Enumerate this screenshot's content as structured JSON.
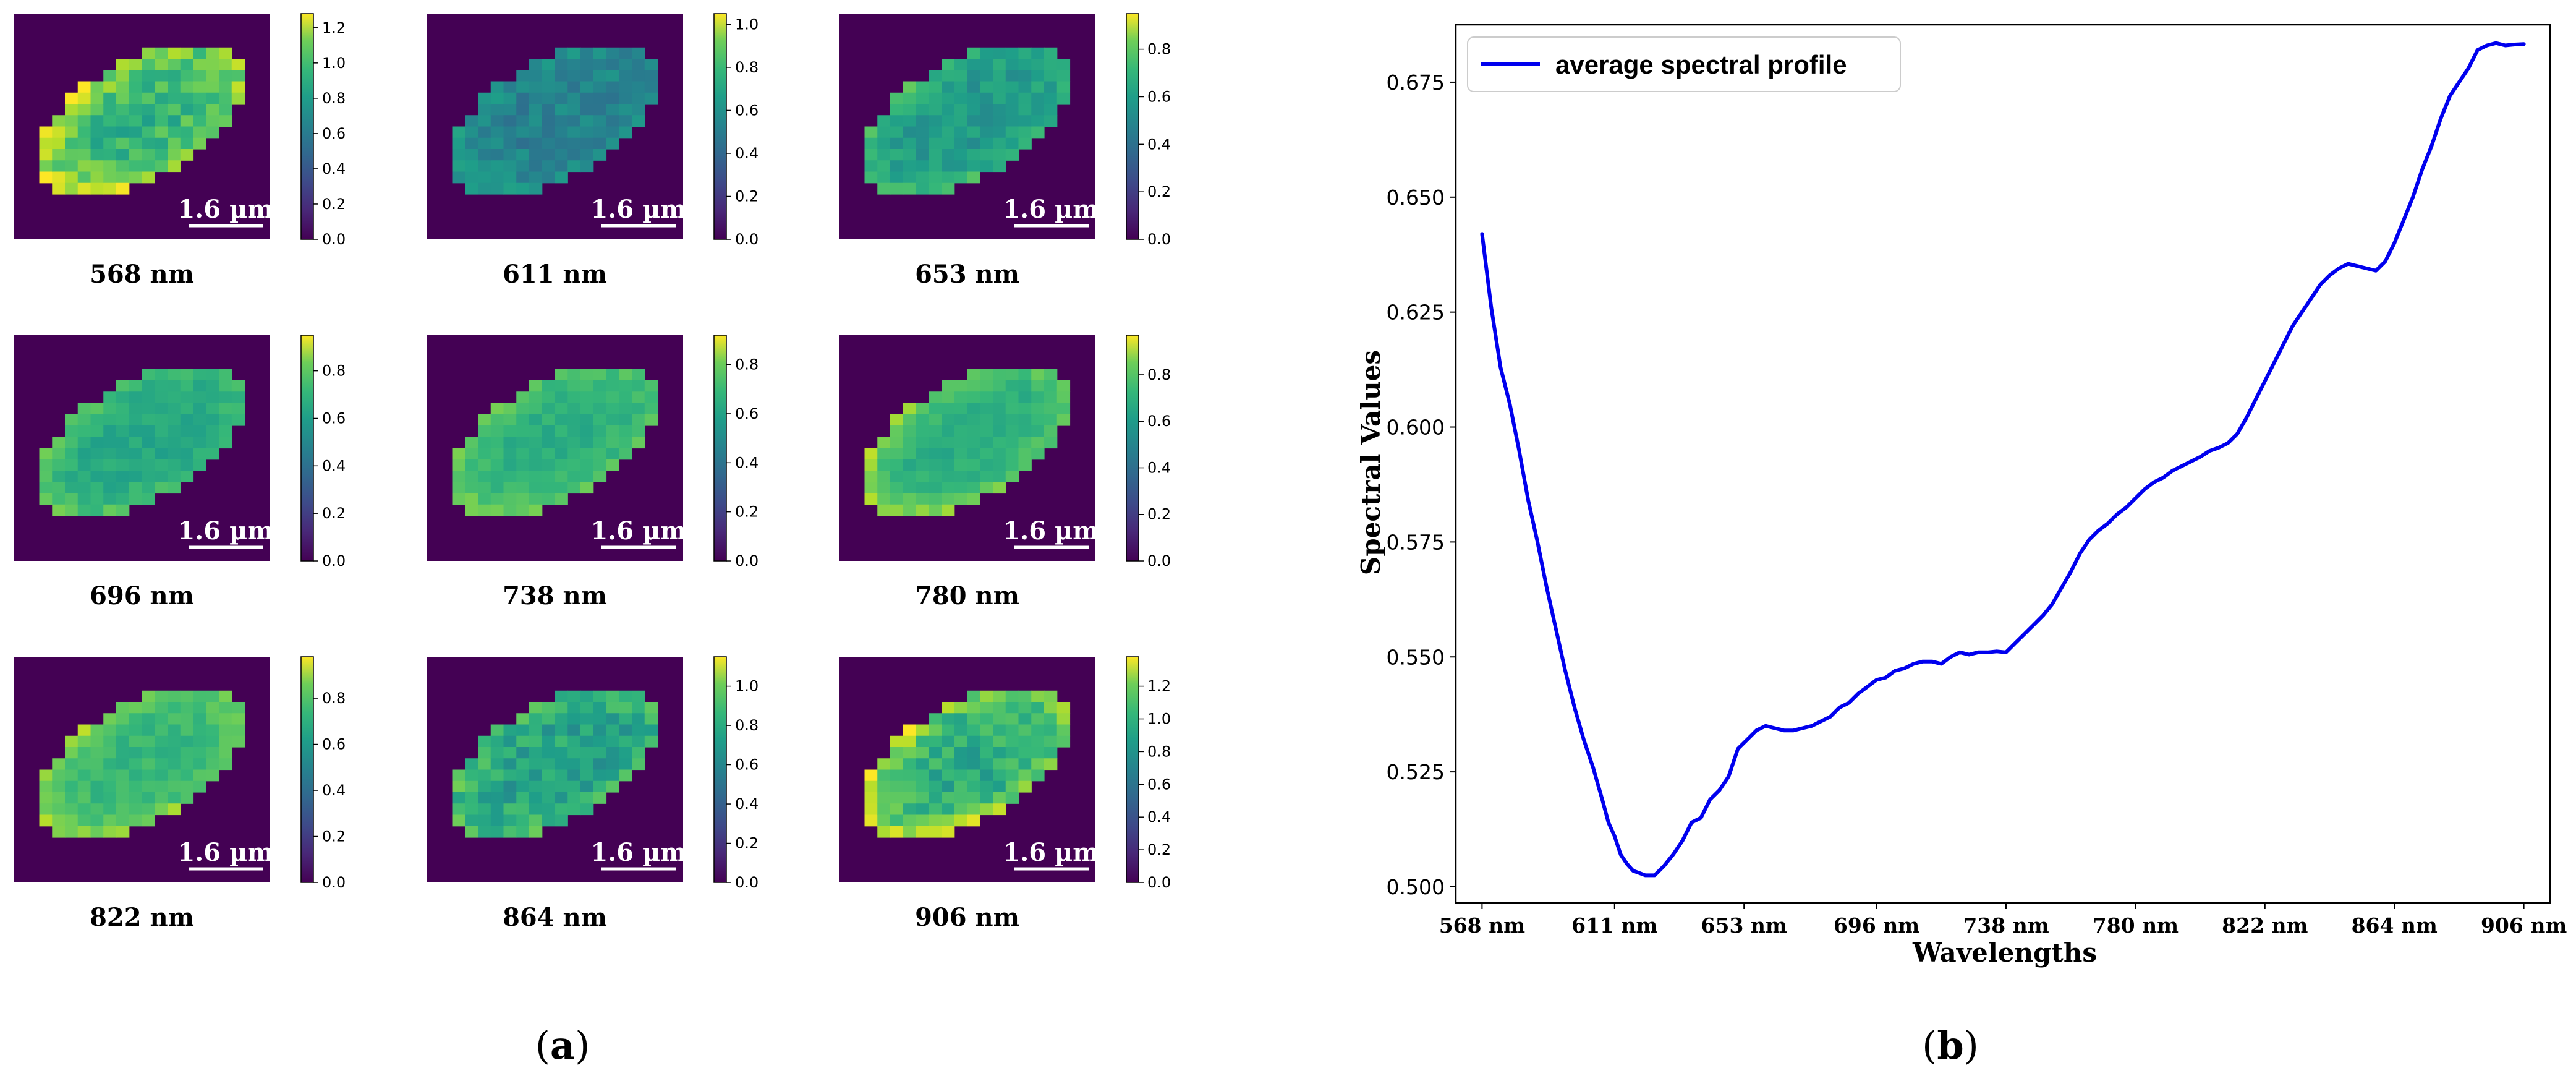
{
  "panel_a": {
    "tiles": [
      {
        "caption": "568 nm",
        "scalebar": "1.6 µm",
        "colorbar_ticks": [
          "0.0",
          "0.2",
          "0.4",
          "0.6",
          "0.8",
          "1.0",
          "1.2"
        ],
        "colorbar_max": 1.28,
        "brightness": 0.66,
        "edge_boost": 0.28,
        "texture": 0.22
      },
      {
        "caption": "611 nm",
        "scalebar": "1.6 µm",
        "colorbar_ticks": [
          "0.0",
          "0.2",
          "0.4",
          "0.6",
          "0.8",
          "1.0"
        ],
        "colorbar_max": 1.05,
        "brightness": 0.44,
        "edge_boost": 0.08,
        "texture": 0.16
      },
      {
        "caption": "653 nm",
        "scalebar": "1.6 µm",
        "colorbar_ticks": [
          "0.0",
          "0.2",
          "0.4",
          "0.6",
          "0.8"
        ],
        "colorbar_max": 0.95,
        "brightness": 0.54,
        "edge_boost": 0.14,
        "texture": 0.14
      },
      {
        "caption": "696 nm",
        "scalebar": "1.6 µm",
        "colorbar_ticks": [
          "0.0",
          "0.2",
          "0.4",
          "0.6",
          "0.8"
        ],
        "colorbar_max": 0.95,
        "brightness": 0.6,
        "edge_boost": 0.14,
        "texture": 0.1
      },
      {
        "caption": "738 nm",
        "scalebar": "1.6 µm",
        "colorbar_ticks": [
          "0.0",
          "0.2",
          "0.4",
          "0.6",
          "0.8"
        ],
        "colorbar_max": 0.92,
        "brightness": 0.63,
        "edge_boost": 0.16,
        "texture": 0.1
      },
      {
        "caption": "780 nm",
        "scalebar": "1.6 µm",
        "colorbar_ticks": [
          "0.0",
          "0.2",
          "0.4",
          "0.6",
          "0.8"
        ],
        "colorbar_max": 0.97,
        "brightness": 0.62,
        "edge_boost": 0.22,
        "texture": 0.1
      },
      {
        "caption": "822 nm",
        "scalebar": "1.6 µm",
        "colorbar_ticks": [
          "0.0",
          "0.2",
          "0.4",
          "0.6",
          "0.8"
        ],
        "colorbar_max": 0.98,
        "brightness": 0.66,
        "edge_boost": 0.18,
        "texture": 0.1
      },
      {
        "caption": "864 nm",
        "scalebar": "1.6 µm",
        "colorbar_ticks": [
          "0.0",
          "0.2",
          "0.4",
          "0.6",
          "0.8",
          "1.0"
        ],
        "colorbar_max": 1.15,
        "brightness": 0.58,
        "edge_boost": 0.14,
        "texture": 0.22
      },
      {
        "caption": "906 nm",
        "scalebar": "1.6 µm",
        "colorbar_ticks": [
          "0.0",
          "0.2",
          "0.4",
          "0.6",
          "0.8",
          "1.0",
          "1.2"
        ],
        "colorbar_max": 1.38,
        "brightness": 0.62,
        "edge_boost": 0.3,
        "texture": 0.2
      }
    ],
    "label": {
      "open": "(",
      "letter": "a",
      "close": ")"
    }
  },
  "panel_b": {
    "label": {
      "open": "(",
      "letter": "b",
      "close": ")"
    }
  },
  "chart_data": {
    "type": "line",
    "title": "",
    "xlabel": "Wavelengths",
    "ylabel": "Spectral Values",
    "x_tick_labels": [
      "568 nm",
      "611 nm",
      "653 nm",
      "696 nm",
      "738 nm",
      "780 nm",
      "822 nm",
      "864 nm",
      "906 nm"
    ],
    "x_tick_values": [
      568,
      611,
      653,
      696,
      738,
      780,
      822,
      864,
      906
    ],
    "xlim": [
      559.5,
      914.5
    ],
    "y_ticks": [
      0.5,
      0.525,
      0.55,
      0.575,
      0.6,
      0.625,
      0.65,
      0.675
    ],
    "y_tick_labels": [
      "0.500",
      "0.525",
      "0.550",
      "0.575",
      "0.600",
      "0.625",
      "0.650",
      "0.675"
    ],
    "ylim": [
      0.4965,
      0.6875
    ],
    "legend": {
      "entries": [
        "average spectral profile"
      ],
      "placement": "upper-left"
    },
    "line_color": "#0000ee",
    "series": [
      {
        "name": "average spectral profile",
        "x": [
          568,
          571,
          574,
          577,
          580,
          583,
          586,
          589,
          592,
          595,
          598,
          601,
          604,
          607,
          609,
          611,
          613,
          615,
          617,
          619,
          621,
          624,
          627,
          630,
          633,
          636,
          639,
          642,
          645,
          648,
          651,
          654,
          657,
          660,
          663,
          666,
          669,
          672,
          675,
          678,
          681,
          684,
          687,
          690,
          693,
          696,
          699,
          702,
          705,
          708,
          711,
          714,
          717,
          720,
          723,
          726,
          729,
          732,
          735,
          738,
          741,
          744,
          747,
          750,
          753,
          756,
          759,
          762,
          765,
          768,
          771,
          774,
          777,
          780,
          783,
          786,
          789,
          792,
          795,
          798,
          801,
          804,
          807,
          810,
          813,
          816,
          819,
          822,
          825,
          828,
          831,
          834,
          837,
          840,
          843,
          846,
          849,
          852,
          855,
          858,
          861,
          864,
          867,
          870,
          873,
          876,
          879,
          882,
          885,
          888,
          891,
          894,
          897,
          900,
          903,
          906
        ],
        "values": [
          0.642,
          0.626,
          0.613,
          0.605,
          0.595,
          0.584,
          0.575,
          0.565,
          0.556,
          0.547,
          0.539,
          0.532,
          0.526,
          0.519,
          0.514,
          0.511,
          0.507,
          0.505,
          0.5035,
          0.503,
          0.5025,
          0.5025,
          0.5045,
          0.507,
          0.51,
          0.514,
          0.515,
          0.519,
          0.521,
          0.524,
          0.53,
          0.532,
          0.534,
          0.535,
          0.5345,
          0.534,
          0.534,
          0.5345,
          0.535,
          0.536,
          0.537,
          0.539,
          0.54,
          0.542,
          0.5435,
          0.545,
          0.5455,
          0.547,
          0.5475,
          0.5485,
          0.549,
          0.549,
          0.5485,
          0.55,
          0.551,
          0.5505,
          0.551,
          0.551,
          0.5512,
          0.551,
          0.553,
          0.555,
          0.557,
          0.559,
          0.5615,
          0.565,
          0.5685,
          0.5725,
          0.5755,
          0.5775,
          0.579,
          0.581,
          0.5825,
          0.5845,
          0.5865,
          0.588,
          0.589,
          0.5905,
          0.5915,
          0.5925,
          0.5935,
          0.5948,
          0.5955,
          0.5965,
          0.5985,
          0.602,
          0.606,
          0.61,
          0.614,
          0.618,
          0.622,
          0.625,
          0.628,
          0.631,
          0.633,
          0.6345,
          0.6355,
          0.635,
          0.6345,
          0.634,
          0.636,
          0.64,
          0.645,
          0.65,
          0.656,
          0.661,
          0.667,
          0.672,
          0.675,
          0.678,
          0.682,
          0.683,
          0.6835,
          0.683,
          0.6832,
          0.6833
        ]
      }
    ]
  }
}
